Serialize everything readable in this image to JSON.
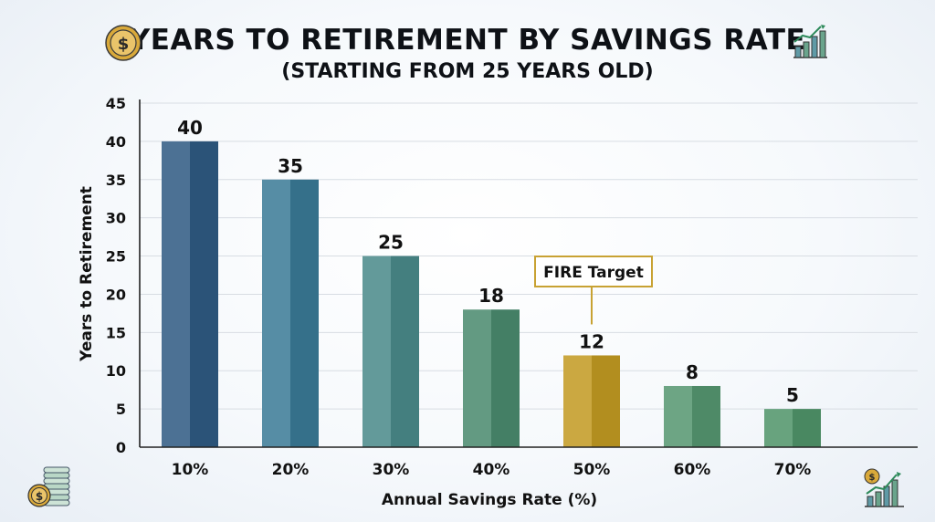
{
  "header": {
    "title": "YEARS TO RETIREMENT BY SAVINGS RATE",
    "subtitle": "(STARTING FROM 25 YEARS OLD)"
  },
  "icons": {
    "title_left": "dollar-coin-icon",
    "title_right": "growth-chart-icon",
    "bottom_left": "coin-stack-icon",
    "bottom_right": "dollar-growth-chart-icon"
  },
  "colors": {
    "bars": [
      "#2f5a82",
      "#3a7a96",
      "#4a8a8a",
      "#4a8a6e",
      "#c29a22",
      "#559670",
      "#4f9469"
    ],
    "highlight": "#c29a22",
    "annotation_border": "#c8a233",
    "grid": "#d8dde3",
    "axis": "#222222"
  },
  "chart_data": {
    "type": "bar",
    "title": "YEARS TO RETIREMENT BY SAVINGS RATE",
    "subtitle": "(STARTING FROM 25 YEARS OLD)",
    "xlabel": "Annual Savings Rate (%)",
    "ylabel": "Years to Retirement",
    "categories": [
      "10%",
      "20%",
      "30%",
      "40%",
      "50%",
      "60%",
      "70%"
    ],
    "values": [
      40,
      35,
      25,
      18,
      12,
      8,
      5
    ],
    "ylim": [
      0,
      45
    ],
    "yticks": [
      0,
      5,
      10,
      15,
      20,
      25,
      30,
      35,
      40,
      45
    ],
    "grid": true,
    "highlight_index": 4,
    "annotation": {
      "text": "FIRE Target",
      "category": "50%"
    }
  }
}
